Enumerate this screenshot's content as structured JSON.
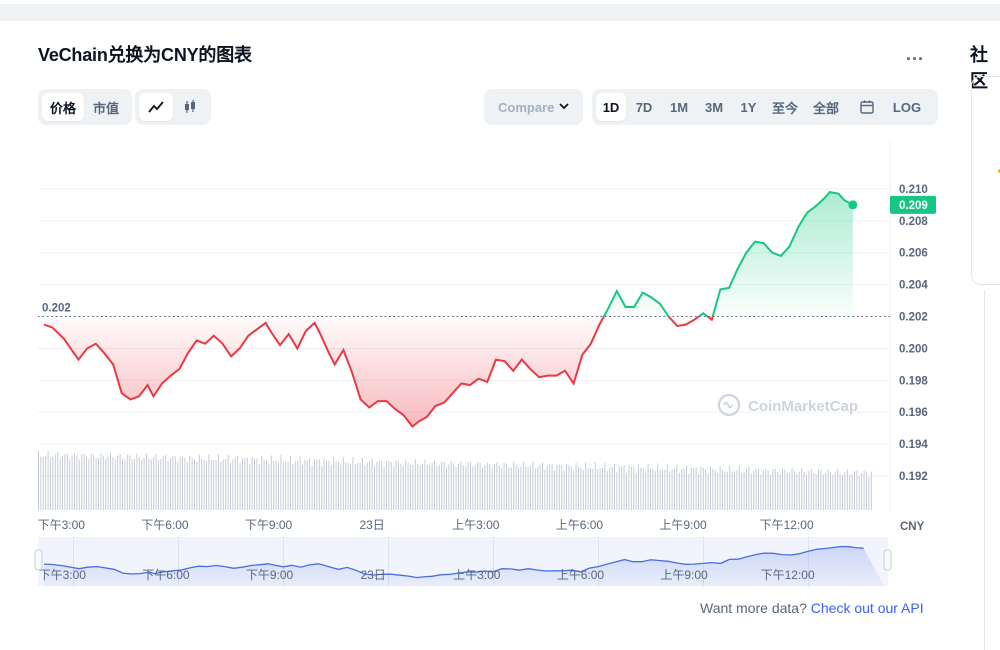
{
  "page": {
    "title": "VeChain兑换为CNY的图表",
    "more_label": "...",
    "side_title": "社区"
  },
  "toolbar": {
    "view_tabs": [
      {
        "label": "价格",
        "active": true
      },
      {
        "label": "市值",
        "active": false
      }
    ],
    "chart_types": [
      {
        "icon": "line-chart-icon",
        "active": true
      },
      {
        "icon": "candlestick-icon",
        "active": false
      }
    ],
    "compare_placeholder": "Compare with",
    "ranges": [
      {
        "label": "1D",
        "active": true
      },
      {
        "label": "7D",
        "active": false
      },
      {
        "label": "1M",
        "active": false
      },
      {
        "label": "3M",
        "active": false
      },
      {
        "label": "1Y",
        "active": false
      },
      {
        "label": "至今",
        "active": false
      },
      {
        "label": "全部",
        "active": false
      },
      {
        "label": "",
        "icon": "calendar-icon",
        "active": false
      },
      {
        "label": "LOG",
        "active": false
      }
    ]
  },
  "colors": {
    "up": "#16c784",
    "down": "#ea3943",
    "navigator": "#4a6ee0",
    "grid": "#eff2f5",
    "text_secondary": "#58667e",
    "link": "#3861fb"
  },
  "watermark": "CoinMarketCap",
  "footer": {
    "text": "Want more data?",
    "link": "Check out our API"
  },
  "chart_data": {
    "type": "line",
    "currency": "CNY",
    "reference_price": 0.202,
    "reference_label": "0.202",
    "current_price": 0.209,
    "current_label": "0.209",
    "ylim": [
      0.191,
      0.2115
    ],
    "yticks": [
      "0.210",
      "0.208",
      "0.206",
      "0.204",
      "0.202",
      "0.200",
      "0.198",
      "0.196",
      "0.194",
      "0.192"
    ],
    "xlim": [
      0,
      288
    ],
    "x_ticks": [
      {
        "label": "下午3:00",
        "t": 6
      },
      {
        "label": "下午6:00",
        "t": 42
      },
      {
        "label": "下午9:00",
        "t": 78
      },
      {
        "label": "23日",
        "t": 114
      },
      {
        "label": "上午3:00",
        "t": 150
      },
      {
        "label": "上午6:00",
        "t": 186
      },
      {
        "label": "上午9:00",
        "t": 222
      },
      {
        "label": "下午12:00",
        "t": 258
      }
    ],
    "series": [
      {
        "points": [
          [
            0,
            0.2015
          ],
          [
            3,
            0.2013
          ],
          [
            7,
            0.2006
          ],
          [
            10,
            0.1998
          ],
          [
            12,
            0.1993
          ],
          [
            15,
            0.2
          ],
          [
            18,
            0.2003
          ],
          [
            21,
            0.1997
          ],
          [
            24,
            0.199
          ],
          [
            27,
            0.1972
          ],
          [
            30,
            0.1968
          ],
          [
            33,
            0.197
          ],
          [
            36,
            0.1977
          ],
          [
            38,
            0.197
          ],
          [
            41,
            0.1978
          ],
          [
            44,
            0.1983
          ],
          [
            47,
            0.1987
          ],
          [
            50,
            0.1997
          ],
          [
            53,
            0.2005
          ],
          [
            56,
            0.2003
          ],
          [
            59,
            0.2008
          ],
          [
            62,
            0.2003
          ],
          [
            65,
            0.1995
          ],
          [
            68,
            0.2
          ],
          [
            71,
            0.2008
          ],
          [
            74,
            0.2012
          ],
          [
            77,
            0.2016
          ],
          [
            79,
            0.201
          ],
          [
            82,
            0.2002
          ],
          [
            85,
            0.2009
          ],
          [
            88,
            0.2
          ],
          [
            91,
            0.2011
          ],
          [
            94,
            0.2016
          ],
          [
            96,
            0.2009
          ],
          [
            99,
            0.1997
          ],
          [
            101,
            0.199
          ],
          [
            104,
            0.1999
          ],
          [
            107,
            0.1985
          ],
          [
            110,
            0.1968
          ],
          [
            113,
            0.1963
          ],
          [
            116,
            0.1967
          ],
          [
            119,
            0.1967
          ],
          [
            122,
            0.1962
          ],
          [
            125,
            0.1958
          ],
          [
            128,
            0.1951
          ],
          [
            130,
            0.1954
          ],
          [
            133,
            0.1957
          ],
          [
            136,
            0.1964
          ],
          [
            139,
            0.1966
          ],
          [
            142,
            0.1972
          ],
          [
            145,
            0.1978
          ],
          [
            148,
            0.1977
          ],
          [
            151,
            0.1981
          ],
          [
            154,
            0.1979
          ],
          [
            157,
            0.1993
          ],
          [
            160,
            0.1992
          ],
          [
            163,
            0.1986
          ],
          [
            166,
            0.1993
          ],
          [
            169,
            0.1987
          ],
          [
            172,
            0.1982
          ],
          [
            175,
            0.1983
          ],
          [
            178,
            0.1983
          ],
          [
            181,
            0.1986
          ],
          [
            184,
            0.1978
          ],
          [
            187,
            0.1996
          ],
          [
            190,
            0.2003
          ],
          [
            193,
            0.2015
          ],
          [
            196,
            0.2025
          ],
          [
            199,
            0.2036
          ],
          [
            202,
            0.2026
          ],
          [
            205,
            0.2026
          ],
          [
            208,
            0.2035
          ],
          [
            211,
            0.2032
          ],
          [
            214,
            0.2028
          ],
          [
            217,
            0.202
          ],
          [
            220,
            0.2014
          ],
          [
            223,
            0.2015
          ],
          [
            226,
            0.2018
          ],
          [
            229,
            0.2022
          ],
          [
            232,
            0.2018
          ],
          [
            235,
            0.2037
          ],
          [
            238,
            0.2038
          ],
          [
            241,
            0.205
          ],
          [
            244,
            0.206
          ],
          [
            247,
            0.2067
          ],
          [
            250,
            0.2066
          ],
          [
            253,
            0.206
          ],
          [
            256,
            0.2058
          ],
          [
            259,
            0.2064
          ],
          [
            262,
            0.2076
          ],
          [
            265,
            0.2085
          ],
          [
            268,
            0.2089
          ],
          [
            271,
            0.2094
          ],
          [
            273,
            0.2098
          ],
          [
            276,
            0.2097
          ],
          [
            278,
            0.2093
          ],
          [
            281,
            0.209
          ]
        ]
      }
    ]
  }
}
